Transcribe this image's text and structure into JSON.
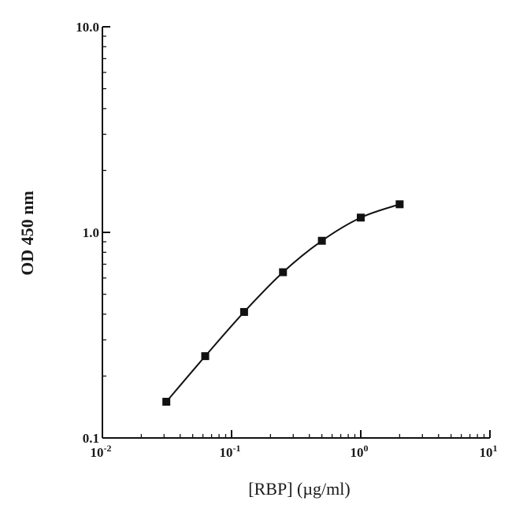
{
  "chart_data": {
    "type": "line",
    "title": "",
    "xlabel": "[RBP] (µg/ml)",
    "ylabel": "OD 450 nm",
    "x_scale": "log",
    "y_scale": "log",
    "xlim": [
      0.01,
      10
    ],
    "ylim": [
      0.1,
      10
    ],
    "x_ticks": [
      {
        "value": 0.01,
        "base": "10",
        "exp": "-2"
      },
      {
        "value": 0.1,
        "base": "10",
        "exp": "-1"
      },
      {
        "value": 1,
        "base": "10",
        "exp": "0"
      },
      {
        "value": 10,
        "base": "10",
        "exp": "1"
      }
    ],
    "y_ticks": [
      {
        "value": 0.1,
        "label": "0.1"
      },
      {
        "value": 1,
        "label": "1.0"
      },
      {
        "value": 10,
        "label": "10.0"
      }
    ],
    "grid": false,
    "legend": "none",
    "series": [
      {
        "x": [
          0.03125,
          0.0625,
          0.125,
          0.25,
          0.5,
          1,
          2
        ],
        "y": [
          0.15,
          0.25,
          0.41,
          0.64,
          0.91,
          1.18,
          1.37
        ],
        "marker": "square",
        "color": "#111111"
      }
    ]
  }
}
